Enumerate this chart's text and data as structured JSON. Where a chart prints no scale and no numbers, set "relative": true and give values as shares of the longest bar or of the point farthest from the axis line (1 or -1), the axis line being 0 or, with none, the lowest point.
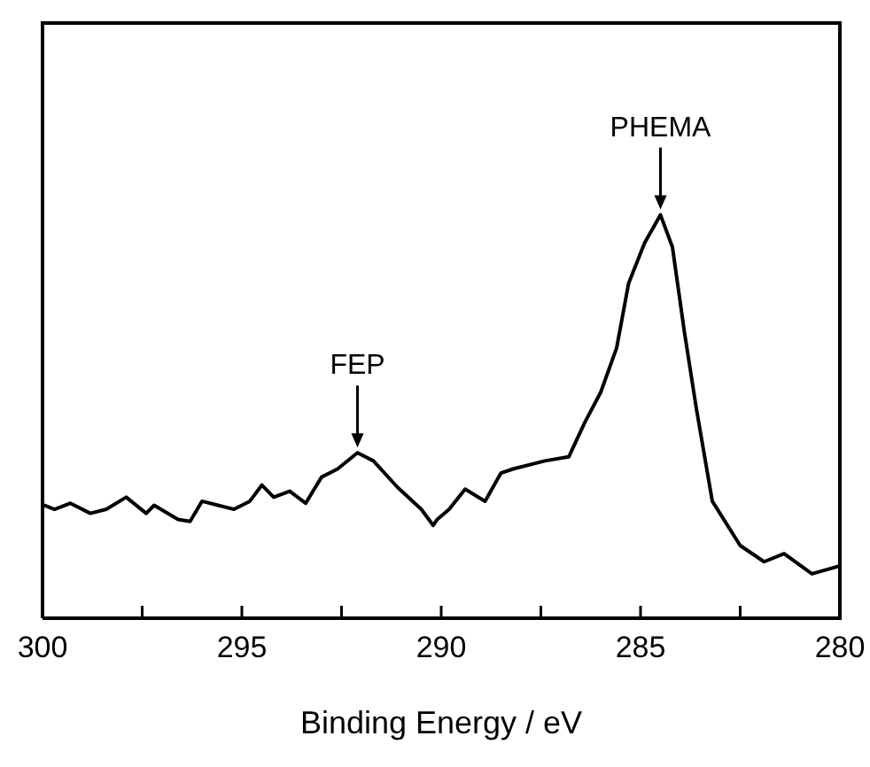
{
  "chart_data": {
    "type": "line",
    "xlabel": "Binding Energy / eV",
    "relative": true,
    "xlim": [
      300,
      280
    ],
    "xticks": [
      300,
      {
        "value": 297.5,
        "label": null
      },
      295,
      {
        "value": 292.5,
        "label": null
      },
      290,
      {
        "value": 287.5,
        "label": null
      },
      285,
      {
        "value": 282.5,
        "label": null
      },
      280
    ],
    "marker": "none",
    "line_style": "solid",
    "annotations": [
      {
        "text": "FEP",
        "x": 292.1,
        "y": 0.41
      },
      {
        "text": "PHEMA",
        "x": 284.5,
        "y": 1.0
      }
    ],
    "series": [
      {
        "color": "#000000",
        "x": [
          299.96,
          299.7,
          299.3,
          298.8,
          298.4,
          297.9,
          297.4,
          297.2,
          296.6,
          296.3,
          296.0,
          295.6,
          295.2,
          294.8,
          294.5,
          294.2,
          293.8,
          293.4,
          293.0,
          292.6,
          292.1,
          291.7,
          291.1,
          290.5,
          290.2,
          290.1,
          289.8,
          289.4,
          288.9,
          288.5,
          288.2,
          287.4,
          286.8,
          286.4,
          286.0,
          285.6,
          285.3,
          284.9,
          284.5,
          284.2,
          283.9,
          283.6,
          283.2,
          282.5,
          281.9,
          281.4,
          280.7,
          280.0
        ],
        "values": [
          0.28,
          0.27,
          0.285,
          0.26,
          0.27,
          0.3,
          0.26,
          0.28,
          0.245,
          0.24,
          0.29,
          0.28,
          0.27,
          0.29,
          0.33,
          0.3,
          0.315,
          0.285,
          0.35,
          0.37,
          0.41,
          0.39,
          0.325,
          0.27,
          0.23,
          0.245,
          0.27,
          0.32,
          0.29,
          0.36,
          0.37,
          0.39,
          0.4,
          0.485,
          0.56,
          0.67,
          0.83,
          0.93,
          1.0,
          0.92,
          0.71,
          0.52,
          0.29,
          0.18,
          0.14,
          0.16,
          0.11,
          0.13
        ]
      }
    ]
  }
}
